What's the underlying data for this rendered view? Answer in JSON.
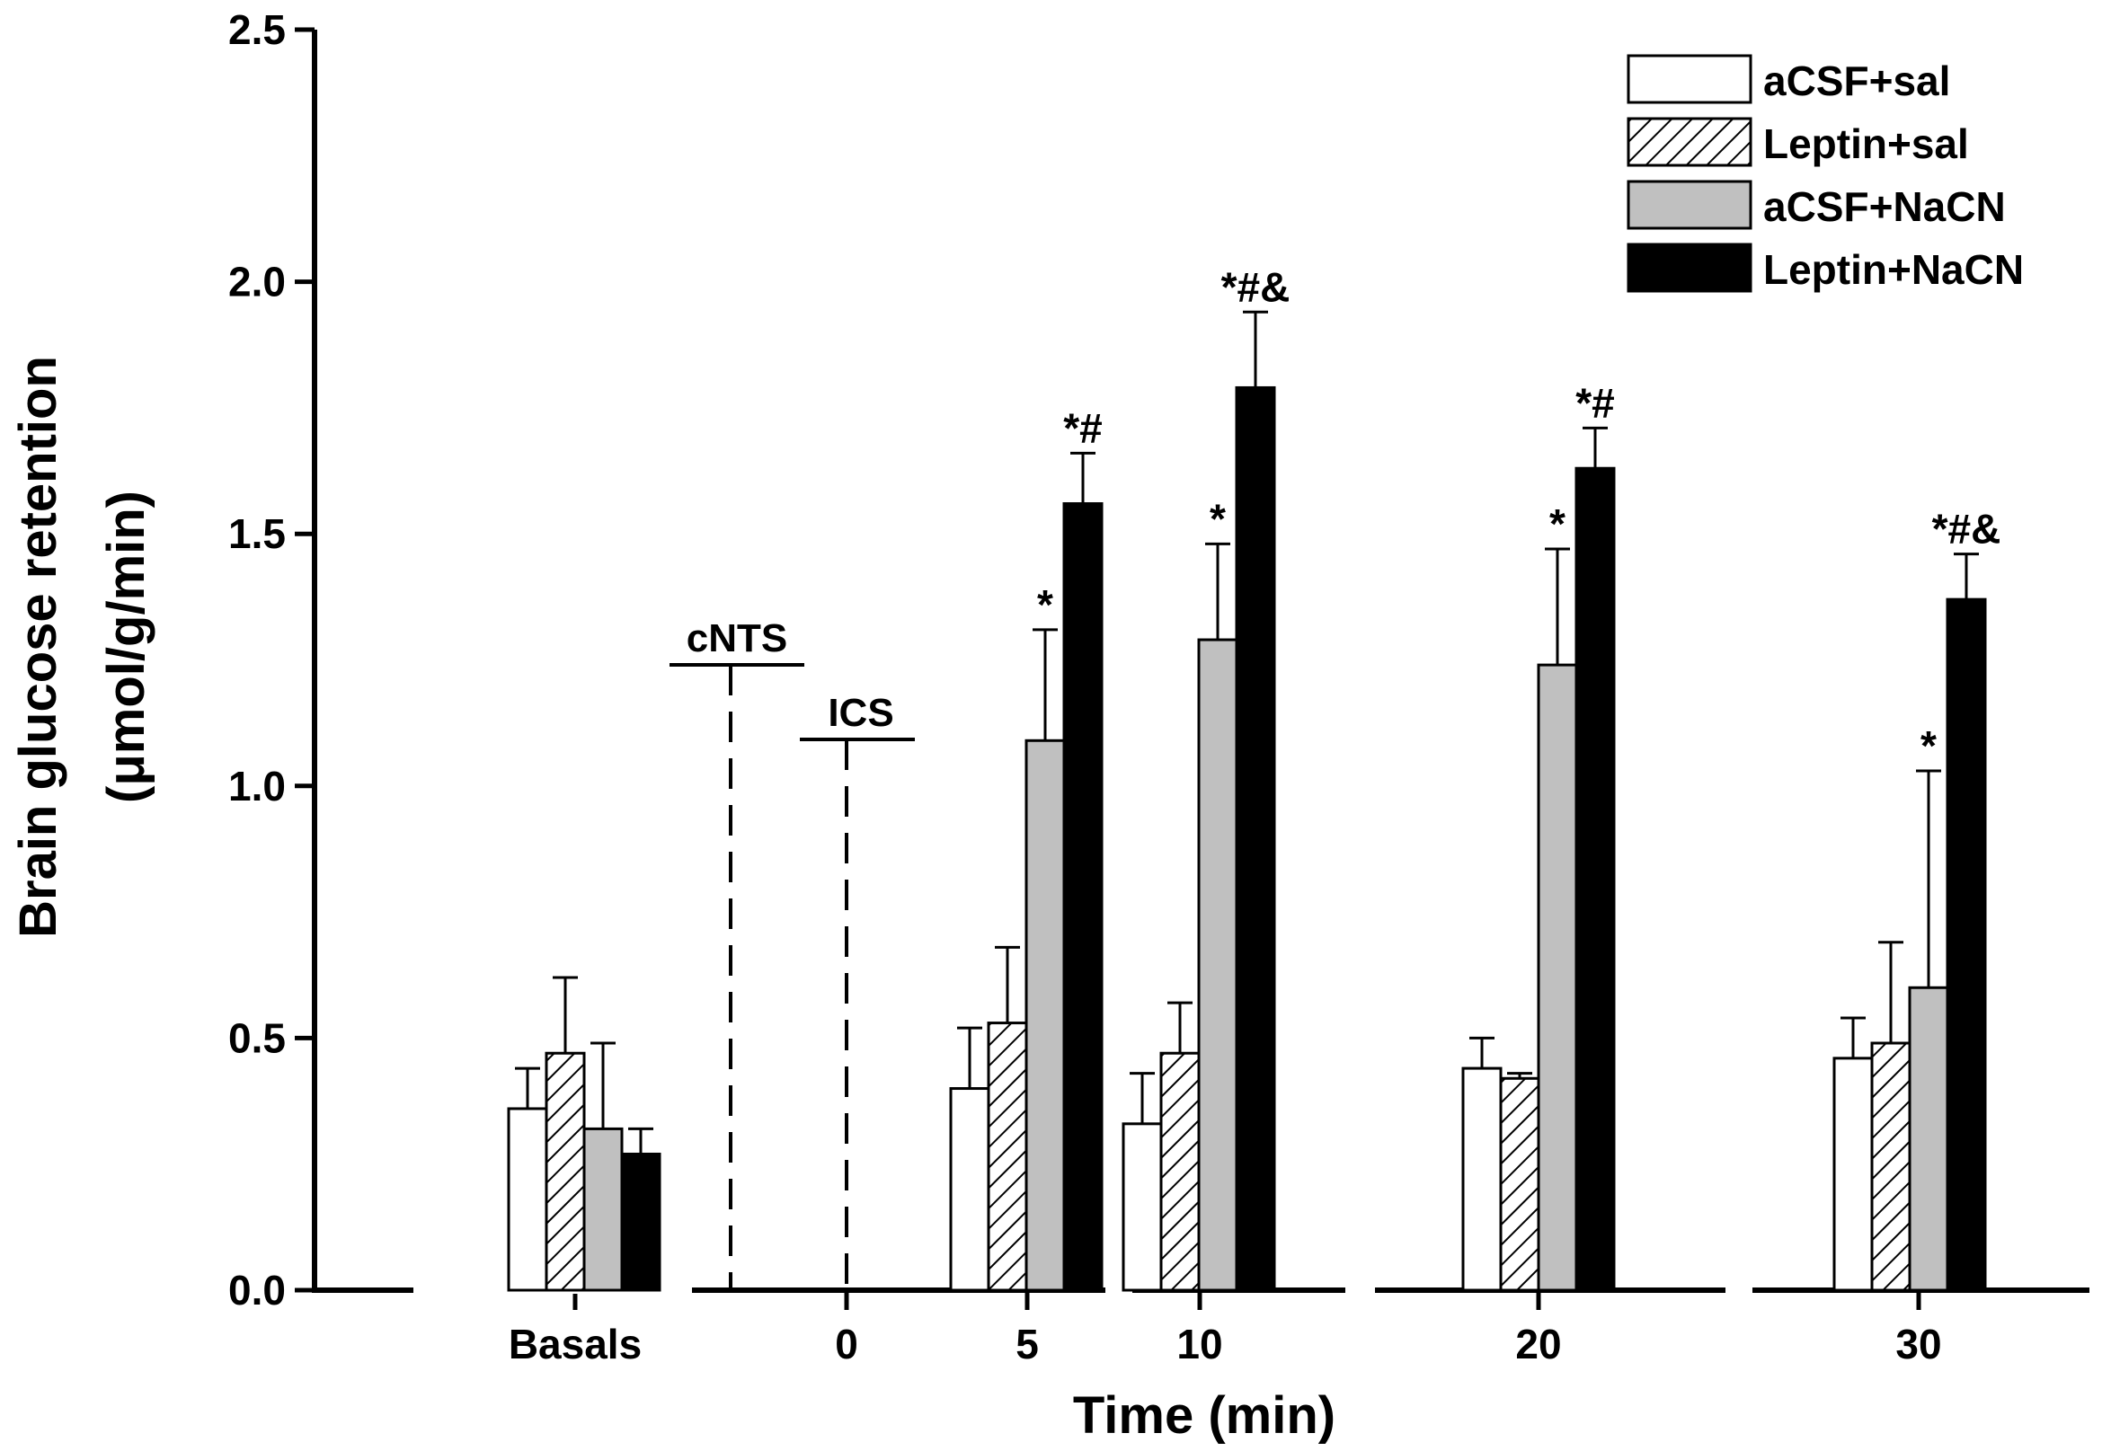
{
  "chart_data": {
    "type": "bar",
    "xlabel": "Time (min)",
    "ylabel_line1": "Brain glucose retention",
    "ylabel_line2": "(μmol/g/min)",
    "ylim": [
      0,
      2.5
    ],
    "yticks": [
      "0.0",
      "0.5",
      "1.0",
      "1.5",
      "2.0",
      "2.5"
    ],
    "categories": [
      "Basals",
      "5",
      "10",
      "20",
      "30"
    ],
    "x_tick_labels": [
      "Basals",
      "0",
      "5",
      "10",
      "20",
      "30"
    ],
    "grid": false,
    "legend_position": "top-right",
    "series": [
      {
        "name": "aCSF+sal",
        "pattern": "open",
        "values": [
          0.36,
          0.4,
          0.33,
          0.44,
          0.46
        ],
        "errors": [
          0.08,
          0.12,
          0.1,
          0.06,
          0.08
        ]
      },
      {
        "name": "Leptin+sal",
        "pattern": "hatched",
        "values": [
          0.47,
          0.53,
          0.47,
          0.42,
          0.49
        ],
        "errors": [
          0.15,
          0.15,
          0.1,
          0.01,
          0.2
        ]
      },
      {
        "name": "aCSF+NaCN",
        "pattern": "gray",
        "values": [
          0.32,
          1.09,
          1.29,
          1.24,
          0.6
        ],
        "errors": [
          0.17,
          0.22,
          0.19,
          0.23,
          0.43
        ]
      },
      {
        "name": "Leptin+NaCN",
        "pattern": "black",
        "values": [
          0.27,
          1.56,
          1.79,
          1.63,
          1.37
        ],
        "errors": [
          0.05,
          0.1,
          0.15,
          0.08,
          0.09
        ]
      }
    ],
    "annotations": [
      {
        "category": "5",
        "series": "aCSF+NaCN",
        "text": "*"
      },
      {
        "category": "5",
        "series": "Leptin+NaCN",
        "text": "*#"
      },
      {
        "category": "10",
        "series": "aCSF+NaCN",
        "text": "*"
      },
      {
        "category": "10",
        "series": "Leptin+NaCN",
        "text": "*#&"
      },
      {
        "category": "20",
        "series": "aCSF+NaCN",
        "text": "*"
      },
      {
        "category": "20",
        "series": "Leptin+NaCN",
        "text": "*#"
      },
      {
        "category": "30",
        "series": "aCSF+NaCN",
        "text": "*"
      },
      {
        "category": "30",
        "series": "Leptin+NaCN",
        "text": "*#&"
      }
    ],
    "events": [
      {
        "label": "cNTS",
        "style": "dashed"
      },
      {
        "label": "ICS",
        "style": "dashed"
      }
    ],
    "colors": {
      "open": "#ffffff",
      "gray": "#c0c0c0",
      "black": "#000000",
      "stroke": "#000000"
    }
  }
}
